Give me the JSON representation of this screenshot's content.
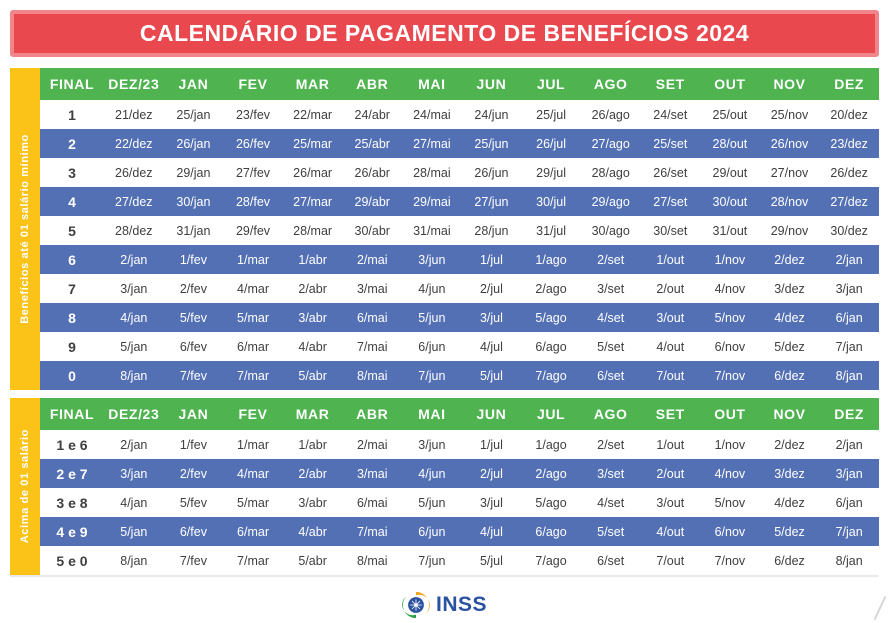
{
  "title": "CALENDÁRIO DE PAGAMENTO DE BENEFÍCIOS 2024",
  "columns": [
    "FINAL",
    "DEZ/23",
    "JAN",
    "FEV",
    "MAR",
    "ABR",
    "MAI",
    "JUN",
    "JUL",
    "AGO",
    "SET",
    "OUT",
    "NOV",
    "DEZ"
  ],
  "tables": [
    {
      "sidebar_label": "Benefícios até 01 salário mínimo",
      "rows": [
        {
          "final": "1",
          "values": [
            "21/dez",
            "25/jan",
            "23/fev",
            "22/mar",
            "24/abr",
            "24/mai",
            "24/jun",
            "25/jul",
            "26/ago",
            "24/set",
            "25/out",
            "25/nov",
            "20/dez"
          ]
        },
        {
          "final": "2",
          "values": [
            "22/dez",
            "26/jan",
            "26/fev",
            "25/mar",
            "25/abr",
            "27/mai",
            "25/jun",
            "26/jul",
            "27/ago",
            "25/set",
            "28/out",
            "26/nov",
            "23/dez"
          ]
        },
        {
          "final": "3",
          "values": [
            "26/dez",
            "29/jan",
            "27/fev",
            "26/mar",
            "26/abr",
            "28/mai",
            "26/jun",
            "29/jul",
            "28/ago",
            "26/set",
            "29/out",
            "27/nov",
            "26/dez"
          ]
        },
        {
          "final": "4",
          "values": [
            "27/dez",
            "30/jan",
            "28/fev",
            "27/mar",
            "29/abr",
            "29/mai",
            "27/jun",
            "30/jul",
            "29/ago",
            "27/set",
            "30/out",
            "28/nov",
            "27/dez"
          ]
        },
        {
          "final": "5",
          "values": [
            "28/dez",
            "31/jan",
            "29/fev",
            "28/mar",
            "30/abr",
            "31/mai",
            "28/jun",
            "31/jul",
            "30/ago",
            "30/set",
            "31/out",
            "29/nov",
            "30/dez"
          ]
        },
        {
          "final": "6",
          "values": [
            "2/jan",
            "1/fev",
            "1/mar",
            "1/abr",
            "2/mai",
            "3/jun",
            "1/jul",
            "1/ago",
            "2/set",
            "1/out",
            "1/nov",
            "2/dez",
            "2/jan"
          ]
        },
        {
          "final": "7",
          "values": [
            "3/jan",
            "2/fev",
            "4/mar",
            "2/abr",
            "3/mai",
            "4/jun",
            "2/jul",
            "2/ago",
            "3/set",
            "2/out",
            "4/nov",
            "3/dez",
            "3/jan"
          ]
        },
        {
          "final": "8",
          "values": [
            "4/jan",
            "5/fev",
            "5/mar",
            "3/abr",
            "6/mai",
            "5/jun",
            "3/jul",
            "5/ago",
            "4/set",
            "3/out",
            "5/nov",
            "4/dez",
            "6/jan"
          ]
        },
        {
          "final": "9",
          "values": [
            "5/jan",
            "6/fev",
            "6/mar",
            "4/abr",
            "7/mai",
            "6/jun",
            "4/jul",
            "6/ago",
            "5/set",
            "4/out",
            "6/nov",
            "5/dez",
            "7/jan"
          ]
        },
        {
          "final": "0",
          "values": [
            "8/jan",
            "7/fev",
            "7/mar",
            "5/abr",
            "8/mai",
            "7/jun",
            "5/jul",
            "7/ago",
            "6/set",
            "7/out",
            "7/nov",
            "6/dez",
            "8/jan"
          ]
        }
      ]
    },
    {
      "sidebar_label": "Acima de 01 salário",
      "rows": [
        {
          "final": "1 e 6",
          "values": [
            "2/jan",
            "1/fev",
            "1/mar",
            "1/abr",
            "2/mai",
            "3/jun",
            "1/jul",
            "1/ago",
            "2/set",
            "1/out",
            "1/nov",
            "2/dez",
            "2/jan"
          ]
        },
        {
          "final": "2 e 7",
          "values": [
            "3/jan",
            "2/fev",
            "4/mar",
            "2/abr",
            "3/mai",
            "4/jun",
            "2/jul",
            "2/ago",
            "3/set",
            "2/out",
            "4/nov",
            "3/dez",
            "3/jan"
          ]
        },
        {
          "final": "3 e 8",
          "values": [
            "4/jan",
            "5/fev",
            "5/mar",
            "3/abr",
            "6/mai",
            "5/jun",
            "3/jul",
            "5/ago",
            "4/set",
            "3/out",
            "5/nov",
            "4/dez",
            "6/jan"
          ]
        },
        {
          "final": "4 e 9",
          "values": [
            "5/jan",
            "6/fev",
            "6/mar",
            "4/abr",
            "7/mai",
            "6/jun",
            "4/jul",
            "6/ago",
            "5/set",
            "4/out",
            "6/nov",
            "5/dez",
            "7/jan"
          ]
        },
        {
          "final": "5 e 0",
          "values": [
            "8/jan",
            "7/fev",
            "7/mar",
            "5/abr",
            "8/mai",
            "7/jun",
            "5/jul",
            "7/ago",
            "6/set",
            "7/out",
            "7/nov",
            "6/dez",
            "8/jan"
          ]
        }
      ]
    }
  ],
  "footer": {
    "logo_text": "INSS",
    "logo_icon": "inss-emblem"
  },
  "colors": {
    "red": "#e8484e",
    "red_border": "#f0868c",
    "green": "#4fb350",
    "blue_row": "#5370b5",
    "yellow": "#fbc318",
    "logo_blue": "#2b52a0",
    "text_dark": "#3f3f3f"
  }
}
